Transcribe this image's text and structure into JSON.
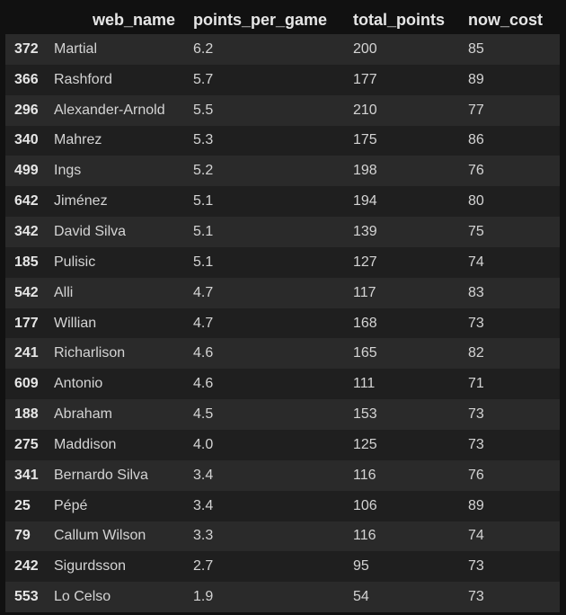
{
  "table": {
    "columns": [
      "web_name",
      "points_per_game",
      "total_points",
      "now_cost"
    ],
    "rows": [
      {
        "index": "372",
        "web_name": "Martial",
        "points_per_game": "6.2",
        "total_points": "200",
        "now_cost": "85"
      },
      {
        "index": "366",
        "web_name": "Rashford",
        "points_per_game": "5.7",
        "total_points": "177",
        "now_cost": "89"
      },
      {
        "index": "296",
        "web_name": "Alexander-Arnold",
        "points_per_game": "5.5",
        "total_points": "210",
        "now_cost": "77"
      },
      {
        "index": "340",
        "web_name": "Mahrez",
        "points_per_game": "5.3",
        "total_points": "175",
        "now_cost": "86"
      },
      {
        "index": "499",
        "web_name": "Ings",
        "points_per_game": "5.2",
        "total_points": "198",
        "now_cost": "76"
      },
      {
        "index": "642",
        "web_name": "Jiménez",
        "points_per_game": "5.1",
        "total_points": "194",
        "now_cost": "80"
      },
      {
        "index": "342",
        "web_name": "David Silva",
        "points_per_game": "5.1",
        "total_points": "139",
        "now_cost": "75"
      },
      {
        "index": "185",
        "web_name": "Pulisic",
        "points_per_game": "5.1",
        "total_points": "127",
        "now_cost": "74"
      },
      {
        "index": "542",
        "web_name": "Alli",
        "points_per_game": "4.7",
        "total_points": "117",
        "now_cost": "83"
      },
      {
        "index": "177",
        "web_name": "Willian",
        "points_per_game": "4.7",
        "total_points": "168",
        "now_cost": "73"
      },
      {
        "index": "241",
        "web_name": "Richarlison",
        "points_per_game": "4.6",
        "total_points": "165",
        "now_cost": "82"
      },
      {
        "index": "609",
        "web_name": "Antonio",
        "points_per_game": "4.6",
        "total_points": "111",
        "now_cost": "71"
      },
      {
        "index": "188",
        "web_name": "Abraham",
        "points_per_game": "4.5",
        "total_points": "153",
        "now_cost": "73"
      },
      {
        "index": "275",
        "web_name": "Maddison",
        "points_per_game": "4.0",
        "total_points": "125",
        "now_cost": "73"
      },
      {
        "index": "341",
        "web_name": "Bernardo Silva",
        "points_per_game": "3.4",
        "total_points": "116",
        "now_cost": "76"
      },
      {
        "index": "25",
        "web_name": "Pépé",
        "points_per_game": "3.4",
        "total_points": "106",
        "now_cost": "89"
      },
      {
        "index": "79",
        "web_name": "Callum Wilson",
        "points_per_game": "3.3",
        "total_points": "116",
        "now_cost": "74"
      },
      {
        "index": "242",
        "web_name": "Sigurdsson",
        "points_per_game": "2.7",
        "total_points": "95",
        "now_cost": "73"
      },
      {
        "index": "553",
        "web_name": "Lo Celso",
        "points_per_game": "1.9",
        "total_points": "54",
        "now_cost": "73"
      }
    ]
  }
}
